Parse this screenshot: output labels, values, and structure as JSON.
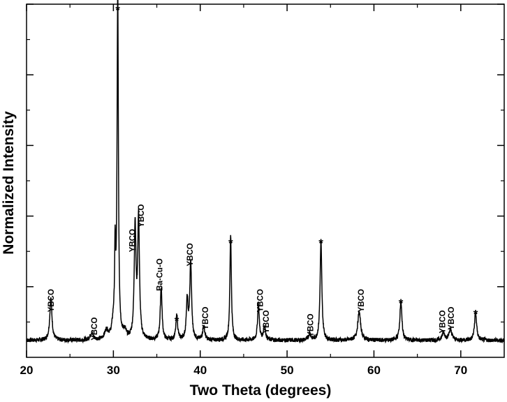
{
  "chart_data": {
    "type": "line",
    "title": "",
    "xlabel": "Two Theta (degrees)",
    "ylabel": "Normalized Intensity",
    "xlim": [
      20,
      75
    ],
    "ylim": [
      0,
      1
    ],
    "x_ticks": [
      20,
      30,
      40,
      50,
      60,
      70
    ],
    "y_tick_labels_shown": false,
    "grid": false,
    "baseline": 0.048,
    "peaks": [
      {
        "x": 22.8,
        "y": 0.12,
        "w": 0.15
      },
      {
        "x": 27.5,
        "y": 0.02,
        "w": 0.2
      },
      {
        "x": 29.2,
        "y": 0.025,
        "w": 0.25
      },
      {
        "x": 30.0,
        "y": 0.04,
        "w": 0.2
      },
      {
        "x": 30.2,
        "y": 0.22,
        "w": 0.07
      },
      {
        "x": 30.5,
        "y": 0.98,
        "w": 0.09
      },
      {
        "x": 31.3,
        "y": 0.02,
        "w": 0.2
      },
      {
        "x": 32.5,
        "y": 0.32,
        "w": 0.12
      },
      {
        "x": 32.9,
        "y": 0.34,
        "w": 0.12
      },
      {
        "x": 35.5,
        "y": 0.15,
        "w": 0.12
      },
      {
        "x": 37.3,
        "y": 0.07,
        "w": 0.12
      },
      {
        "x": 38.5,
        "y": 0.11,
        "w": 0.12
      },
      {
        "x": 38.9,
        "y": 0.22,
        "w": 0.12
      },
      {
        "x": 40.4,
        "y": 0.04,
        "w": 0.14
      },
      {
        "x": 43.5,
        "y": 0.3,
        "w": 0.1
      },
      {
        "x": 46.7,
        "y": 0.1,
        "w": 0.12
      },
      {
        "x": 47.4,
        "y": 0.04,
        "w": 0.14
      },
      {
        "x": 52.6,
        "y": 0.02,
        "w": 0.14
      },
      {
        "x": 53.9,
        "y": 0.28,
        "w": 0.12
      },
      {
        "x": 58.3,
        "y": 0.08,
        "w": 0.2
      },
      {
        "x": 63.1,
        "y": 0.11,
        "w": 0.14
      },
      {
        "x": 68.0,
        "y": 0.02,
        "w": 0.2
      },
      {
        "x": 68.8,
        "y": 0.03,
        "w": 0.2
      },
      {
        "x": 71.7,
        "y": 0.08,
        "w": 0.14
      }
    ],
    "annotations": [
      {
        "text": "YBCO",
        "x": 22.8,
        "y": 0.12,
        "rotated": true
      },
      {
        "text": "YBCO",
        "x": 27.8,
        "y": 0.04,
        "rotated": true
      },
      {
        "text": "*",
        "x": 30.5,
        "y": 0.98,
        "rotated": false
      },
      {
        "text": "YBCO",
        "x": 32.2,
        "y": 0.29,
        "rotated": true
      },
      {
        "text": "YBCO",
        "x": 33.2,
        "y": 0.36,
        "rotated": true
      },
      {
        "text": "Ba-Cu-O",
        "x": 35.3,
        "y": 0.18,
        "rotated": true
      },
      {
        "text": "*",
        "x": 37.3,
        "y": 0.1,
        "rotated": false
      },
      {
        "text": "YBCO",
        "x": 38.8,
        "y": 0.25,
        "rotated": true
      },
      {
        "text": "YBCO",
        "x": 40.6,
        "y": 0.07,
        "rotated": true
      },
      {
        "text": "*",
        "x": 43.5,
        "y": 0.32,
        "rotated": false
      },
      {
        "text": "YBCO",
        "x": 46.9,
        "y": 0.12,
        "rotated": true
      },
      {
        "text": "YBCO",
        "x": 47.6,
        "y": 0.06,
        "rotated": true
      },
      {
        "text": "YBCO",
        "x": 52.7,
        "y": 0.05,
        "rotated": true
      },
      {
        "text": "*",
        "x": 53.9,
        "y": 0.32,
        "rotated": false
      },
      {
        "text": "YBCO",
        "x": 58.5,
        "y": 0.12,
        "rotated": true
      },
      {
        "text": "*",
        "x": 63.1,
        "y": 0.15,
        "rotated": false
      },
      {
        "text": "YBCO",
        "x": 67.9,
        "y": 0.06,
        "rotated": true
      },
      {
        "text": "YBCO",
        "x": 68.9,
        "y": 0.07,
        "rotated": true
      },
      {
        "text": "*",
        "x": 71.7,
        "y": 0.12,
        "rotated": false
      }
    ]
  }
}
